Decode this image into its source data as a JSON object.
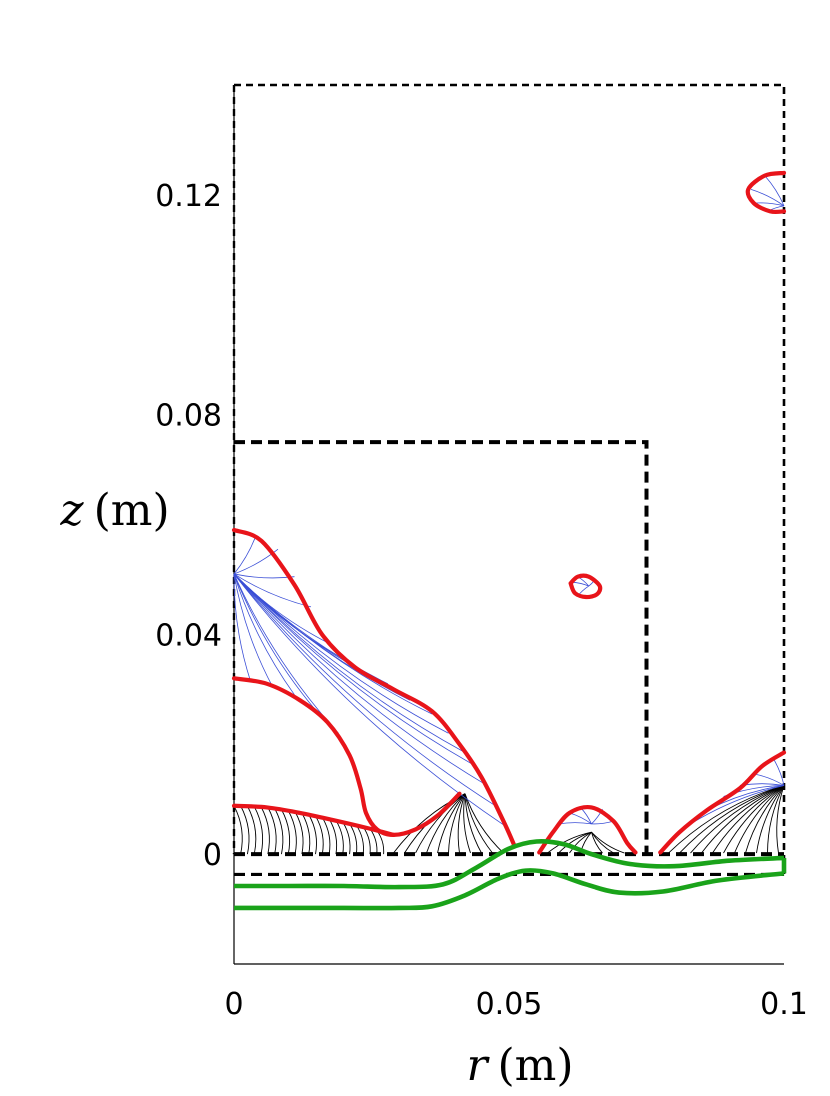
{
  "chart_data": {
    "type": "line",
    "title": "",
    "xlabel": {
      "var": "r",
      "unit": "(m)"
    },
    "ylabel": {
      "var": "z",
      "unit": "(m)"
    },
    "xlim": [
      0,
      0.1
    ],
    "ylim": [
      -0.02,
      0.14
    ],
    "x_ticks": [
      {
        "value": 0,
        "label": "0"
      },
      {
        "value": 0.05,
        "label": "0.05"
      },
      {
        "value": 0.1,
        "label": "0.1"
      }
    ],
    "y_ticks": [
      {
        "value": 0,
        "label": "0"
      },
      {
        "value": 0.04,
        "label": "0.04"
      },
      {
        "value": 0.08,
        "label": "0.08"
      },
      {
        "value": 0.12,
        "label": "0.12"
      }
    ],
    "grid": false,
    "legend": "none",
    "colors": {
      "red_curves": "#e8141a",
      "green_curves": "#1aa31a",
      "boundaries": "#000000",
      "blue_lines": "#3b4fd6",
      "black_lines": "#000000"
    },
    "dashed_boundaries": [
      {
        "name": "outer-domain",
        "points": [
          [
            0,
            0.14
          ],
          [
            0.1,
            0.14
          ],
          [
            0.1,
            -0.004
          ]
        ]
      },
      {
        "name": "inner-box",
        "points": [
          [
            0,
            0.075
          ],
          [
            0.075,
            0.075
          ],
          [
            0.075,
            0.0
          ]
        ]
      },
      {
        "name": "base-line-1",
        "points": [
          [
            0,
            0.0
          ],
          [
            0.1,
            0.0
          ]
        ]
      },
      {
        "name": "base-line-2",
        "points": [
          [
            0,
            -0.0037
          ],
          [
            0.1,
            -0.0037
          ]
        ]
      }
    ],
    "red_curves": [
      {
        "name": "upper-left-front",
        "points": [
          [
            0,
            0.059
          ],
          [
            0.005,
            0.057
          ],
          [
            0.011,
            0.049
          ],
          [
            0.016,
            0.04
          ],
          [
            0.022,
            0.034
          ],
          [
            0.029,
            0.03
          ],
          [
            0.036,
            0.026
          ],
          [
            0.041,
            0.02
          ],
          [
            0.045,
            0.014
          ],
          [
            0.049,
            0.006
          ],
          [
            0.051,
            0.0015
          ]
        ]
      },
      {
        "name": "middle-left-front",
        "points": [
          [
            0,
            0.032
          ],
          [
            0.006,
            0.031
          ],
          [
            0.012,
            0.028
          ],
          [
            0.017,
            0.024
          ],
          [
            0.021,
            0.018
          ],
          [
            0.023,
            0.012
          ],
          [
            0.024,
            0.0075
          ],
          [
            0.026,
            0.0045
          ],
          [
            0.029,
            0.0035
          ],
          [
            0.033,
            0.0045
          ],
          [
            0.037,
            0.007
          ],
          [
            0.041,
            0.011
          ]
        ]
      },
      {
        "name": "lower-left-front",
        "points": [
          [
            0,
            0.0088
          ],
          [
            0.006,
            0.0085
          ],
          [
            0.012,
            0.0075
          ],
          [
            0.018,
            0.0062
          ],
          [
            0.024,
            0.0048
          ],
          [
            0.029,
            0.0035
          ]
        ]
      },
      {
        "name": "center-hump",
        "points": [
          [
            0.0555,
            0.0003
          ],
          [
            0.058,
            0.004
          ],
          [
            0.061,
            0.0075
          ],
          [
            0.065,
            0.0085
          ],
          [
            0.069,
            0.006
          ],
          [
            0.0715,
            0.002
          ],
          [
            0.073,
            0.0003
          ]
        ]
      },
      {
        "name": "right-bottom-front",
        "points": [
          [
            0.0775,
            0.0003
          ],
          [
            0.081,
            0.004
          ],
          [
            0.086,
            0.008
          ],
          [
            0.092,
            0.012
          ],
          [
            0.096,
            0.016
          ],
          [
            0.1,
            0.0185
          ]
        ]
      },
      {
        "name": "right-top-front",
        "points": [
          [
            0.1,
            0.124
          ],
          [
            0.0965,
            0.1235
          ],
          [
            0.0935,
            0.121
          ],
          [
            0.0945,
            0.1185
          ],
          [
            0.0975,
            0.117
          ],
          [
            0.1,
            0.117
          ]
        ]
      },
      {
        "name": "small-loop",
        "points": [
          [
            0.0612,
            0.0493
          ],
          [
            0.0625,
            0.0505
          ],
          [
            0.0645,
            0.0505
          ],
          [
            0.0665,
            0.0488
          ],
          [
            0.066,
            0.0473
          ],
          [
            0.064,
            0.0468
          ],
          [
            0.062,
            0.0475
          ],
          [
            0.0612,
            0.0493
          ]
        ]
      }
    ],
    "green_curves": [
      {
        "name": "upper-green",
        "points": [
          [
            0,
            -0.0058
          ],
          [
            0.01,
            -0.0058
          ],
          [
            0.02,
            -0.0058
          ],
          [
            0.03,
            -0.006
          ],
          [
            0.038,
            -0.0055
          ],
          [
            0.044,
            -0.0025
          ],
          [
            0.05,
            0.001
          ],
          [
            0.055,
            0.0023
          ],
          [
            0.06,
            0.0018
          ],
          [
            0.065,
            0.0
          ],
          [
            0.072,
            -0.0018
          ],
          [
            0.08,
            -0.0022
          ],
          [
            0.09,
            -0.0012
          ],
          [
            0.1,
            -0.0007
          ]
        ]
      },
      {
        "name": "lower-green",
        "points": [
          [
            0,
            -0.0098
          ],
          [
            0.01,
            -0.0098
          ],
          [
            0.02,
            -0.0098
          ],
          [
            0.03,
            -0.0098
          ],
          [
            0.036,
            -0.0095
          ],
          [
            0.042,
            -0.0075
          ],
          [
            0.048,
            -0.0045
          ],
          [
            0.053,
            -0.003
          ],
          [
            0.058,
            -0.0035
          ],
          [
            0.064,
            -0.0055
          ],
          [
            0.07,
            -0.007
          ],
          [
            0.078,
            -0.0068
          ],
          [
            0.088,
            -0.0048
          ],
          [
            0.1,
            -0.0035
          ]
        ]
      }
    ],
    "blue_fans": [
      {
        "name": "fan-upper-left",
        "origin": [
          0,
          0.051
        ],
        "endpoints": [
          [
            0.004,
            0.058
          ],
          [
            0.008,
            0.0555
          ],
          [
            0.011,
            0.0505
          ],
          [
            0.014,
            0.045
          ],
          [
            0.017,
            0.0385
          ],
          [
            0.02,
            0.0355
          ],
          [
            0.024,
            0.033
          ],
          [
            0.028,
            0.031
          ],
          [
            0.032,
            0.028
          ],
          [
            0.036,
            0.0255
          ],
          [
            0.039,
            0.022
          ],
          [
            0.042,
            0.0185
          ],
          [
            0.044,
            0.016
          ],
          [
            0.046,
            0.0125
          ],
          [
            0.048,
            0.0085
          ],
          [
            0.0495,
            0.005
          ],
          [
            0.003,
            0.0315
          ],
          [
            0.007,
            0.0305
          ],
          [
            0.011,
            0.029
          ],
          [
            0.015,
            0.026
          ],
          [
            0.019,
            0.022
          ]
        ]
      },
      {
        "name": "fan-right-top",
        "origin": [
          0.1,
          0.118
        ],
        "endpoints": [
          [
            0.0965,
            0.1235
          ],
          [
            0.094,
            0.121
          ],
          [
            0.0945,
            0.1185
          ],
          [
            0.097,
            0.117
          ]
        ]
      },
      {
        "name": "fan-right-bottom",
        "origin": [
          0.1,
          0.0125
        ],
        "endpoints": [
          [
            0.083,
            0.0055
          ],
          [
            0.086,
            0.008
          ],
          [
            0.089,
            0.0105
          ],
          [
            0.092,
            0.0125
          ],
          [
            0.095,
            0.0145
          ],
          [
            0.098,
            0.0175
          ]
        ]
      },
      {
        "name": "fan-center-hump",
        "origin": [
          0.065,
          0.0055
        ],
        "endpoints": [
          [
            0.059,
            0.0055
          ],
          [
            0.061,
            0.0075
          ],
          [
            0.063,
            0.0085
          ],
          [
            0.067,
            0.0082
          ],
          [
            0.069,
            0.006
          ]
        ]
      },
      {
        "name": "fan-small-loop",
        "origin": [
          0.0645,
          0.0488
        ],
        "endpoints": [
          [
            0.0615,
            0.0495
          ],
          [
            0.0625,
            0.0505
          ],
          [
            0.0655,
            0.0498
          ],
          [
            0.0625,
            0.047
          ]
        ]
      }
    ],
    "black_fans": [
      {
        "name": "fan-lower-left",
        "origin_y": 0.0,
        "from_x": 0.0,
        "to_x": 0.026,
        "count": 22,
        "top_curve": "lower-left-front",
        "bend": 0.004
      },
      {
        "name": "fan-cusp-left",
        "origin": [
          0.042,
          0.011
        ],
        "endpoints": [
          [
            0.029,
            0.0002
          ],
          [
            0.031,
            0.0002
          ],
          [
            0.033,
            0.0002
          ],
          [
            0.035,
            0.0002
          ],
          [
            0.037,
            0.0002
          ],
          [
            0.039,
            0.0002
          ],
          [
            0.041,
            0.0002
          ],
          [
            0.043,
            0.0002
          ],
          [
            0.045,
            0.0002
          ],
          [
            0.047,
            0.0002
          ],
          [
            0.049,
            0.0002
          ]
        ]
      },
      {
        "name": "fan-center",
        "origin": [
          0.065,
          0.004
        ],
        "endpoints": [
          [
            0.057,
            0.0002
          ],
          [
            0.059,
            0.0002
          ],
          [
            0.061,
            0.0002
          ],
          [
            0.063,
            0.0002
          ],
          [
            0.067,
            0.0002
          ],
          [
            0.069,
            0.0002
          ],
          [
            0.071,
            0.0002
          ]
        ]
      },
      {
        "name": "fan-right",
        "origin": [
          0.1,
          0.0125
        ],
        "endpoints": [
          [
            0.079,
            0.0002
          ],
          [
            0.081,
            0.0002
          ],
          [
            0.083,
            0.0002
          ],
          [
            0.085,
            0.0002
          ],
          [
            0.087,
            0.0002
          ],
          [
            0.089,
            0.0002
          ],
          [
            0.091,
            0.0002
          ],
          [
            0.093,
            0.0002
          ],
          [
            0.095,
            0.0002
          ],
          [
            0.097,
            0.0002
          ],
          [
            0.099,
            0.0002
          ]
        ]
      }
    ]
  }
}
